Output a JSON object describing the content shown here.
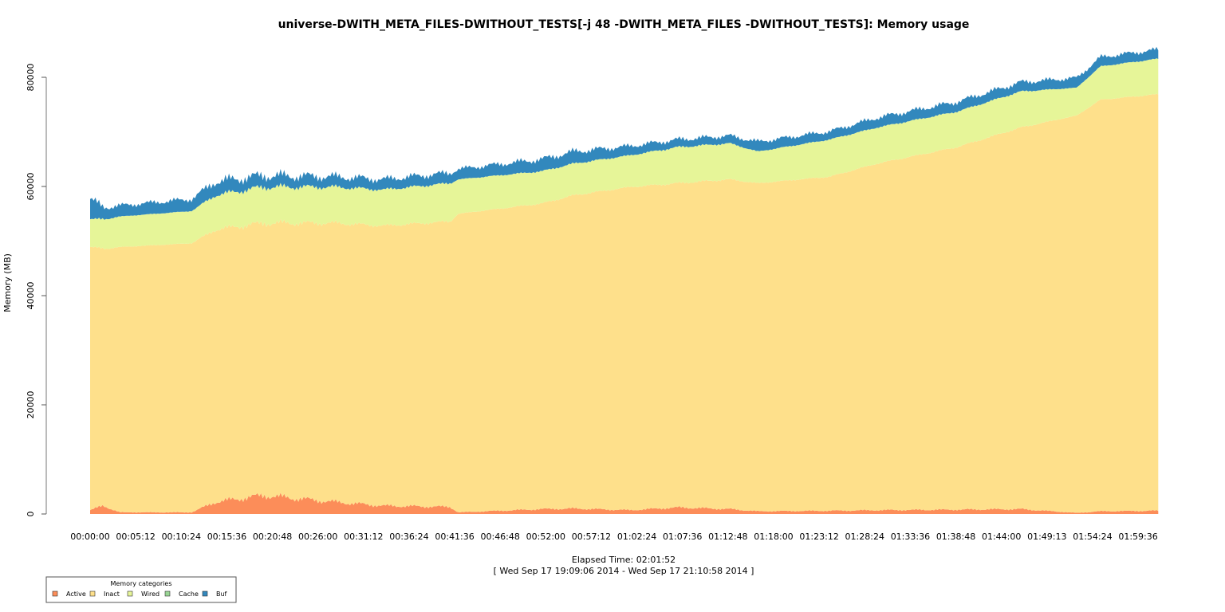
{
  "chart_data": {
    "type": "area",
    "stacked": true,
    "title": "universe-DWITH_META_FILES-DWITHOUT_TESTS[-j 48 -DWITH_META_FILES -DWITHOUT_TESTS]: Memory usage",
    "xlabel": "Elapsed Time: 02:01:52",
    "xlabel2": "[ Wed Sep 17 19:09:06 2014 - Wed Sep 17 21:10:58 2014 ]",
    "ylabel": "Memory (MB)",
    "xlim_minutes": [
      0,
      121.87
    ],
    "ylim": [
      0,
      80000
    ],
    "yticks": [
      0,
      20000,
      40000,
      60000,
      80000
    ],
    "xtick_labels": [
      "00:00:00",
      "00:05:12",
      "00:10:24",
      "00:15:36",
      "00:20:48",
      "00:26:00",
      "00:31:12",
      "00:36:24",
      "00:41:36",
      "00:46:48",
      "00:52:00",
      "00:57:12",
      "01:02:24",
      "01:07:36",
      "01:12:48",
      "01:18:00",
      "01:23:12",
      "01:28:24",
      "01:33:36",
      "01:38:48",
      "01:44:00",
      "01:49:13",
      "01:54:24",
      "01:59:36"
    ],
    "xtick_minutes_step": 5.2,
    "x_minutes": [
      0,
      1.5,
      3.4,
      11.6,
      14.3,
      19.8,
      27.9,
      33.4,
      41.1,
      42.0,
      51.6,
      55.2,
      61.6,
      67.1,
      73.0,
      76.2,
      84.4,
      89.8,
      98.9,
      106.2,
      112.6,
      115.3,
      121.9
    ],
    "series": [
      {
        "name": "Active",
        "color": "#fc8d59",
        "values": [
          700,
          1500,
          300,
          300,
          2200,
          3400,
          2200,
          1500,
          1300,
          300,
          900,
          1000,
          700,
          1200,
          900,
          500,
          600,
          700,
          800,
          900,
          200,
          500,
          600
        ]
      },
      {
        "name": "Inact",
        "color": "#fee08b",
        "values": [
          48200,
          47100,
          48600,
          49300,
          49900,
          49900,
          51100,
          51300,
          52300,
          54700,
          56000,
          57400,
          59200,
          59400,
          60400,
          60100,
          61200,
          63500,
          66400,
          69900,
          72800,
          75400,
          76300
        ]
      },
      {
        "name": "Wired",
        "color": "#e6f598",
        "values": [
          5100,
          5400,
          5600,
          5900,
          6300,
          6600,
          6600,
          6600,
          7000,
          6300,
          5900,
          5800,
          5800,
          6600,
          6600,
          5800,
          6800,
          6600,
          6500,
          6600,
          5100,
          6100,
          6500
        ]
      },
      {
        "name": "Cache",
        "color": "#99d594",
        "values": [
          0,
          0,
          0,
          0,
          0,
          0,
          0,
          0,
          0,
          0,
          0,
          0,
          0,
          0,
          0,
          0,
          0,
          0,
          0,
          0,
          0,
          0,
          0
        ]
      },
      {
        "name": "Buf",
        "color": "#3288bd",
        "values": [
          3700,
          2200,
          2000,
          2200,
          2500,
          2100,
          1900,
          1900,
          1900,
          1900,
          2200,
          2200,
          1700,
          1400,
          1400,
          1800,
          1500,
          1800,
          1800,
          1700,
          1800,
          1700,
          1700
        ]
      }
    ],
    "legend": {
      "title": "Memory categories",
      "position": "bottom-left"
    }
  }
}
